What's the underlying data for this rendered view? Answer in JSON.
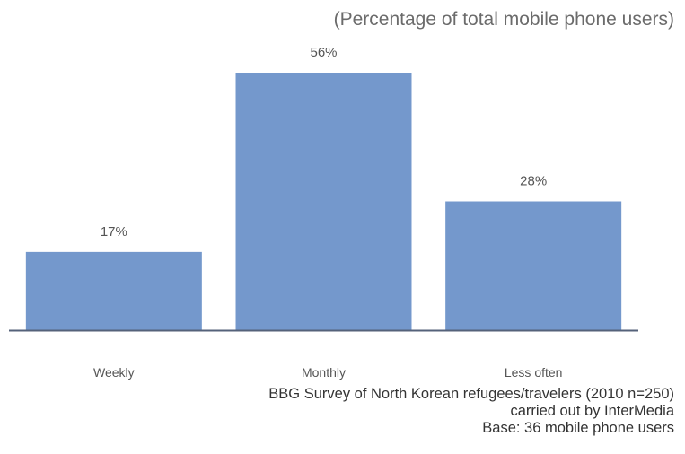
{
  "chart_data": {
    "type": "bar",
    "title": "",
    "subtitle": "(Percentage of total mobile phone users)",
    "categories": [
      "Weekly",
      "Monthly",
      "Less often"
    ],
    "values": [
      17,
      56,
      28
    ],
    "value_labels": [
      "17%",
      "56%",
      "28%"
    ],
    "xlabel": "",
    "ylabel": "",
    "ylim": [
      0,
      60
    ],
    "grid": false,
    "legend": "none",
    "bar_color": "#7498cc",
    "axis_color": "#55627a"
  },
  "source": {
    "line1": "BBG Survey of North Korean refugees/travelers (2010 n=250)",
    "line2": "carried out by InterMedia",
    "line3": "Base: 36 mobile phone users"
  }
}
